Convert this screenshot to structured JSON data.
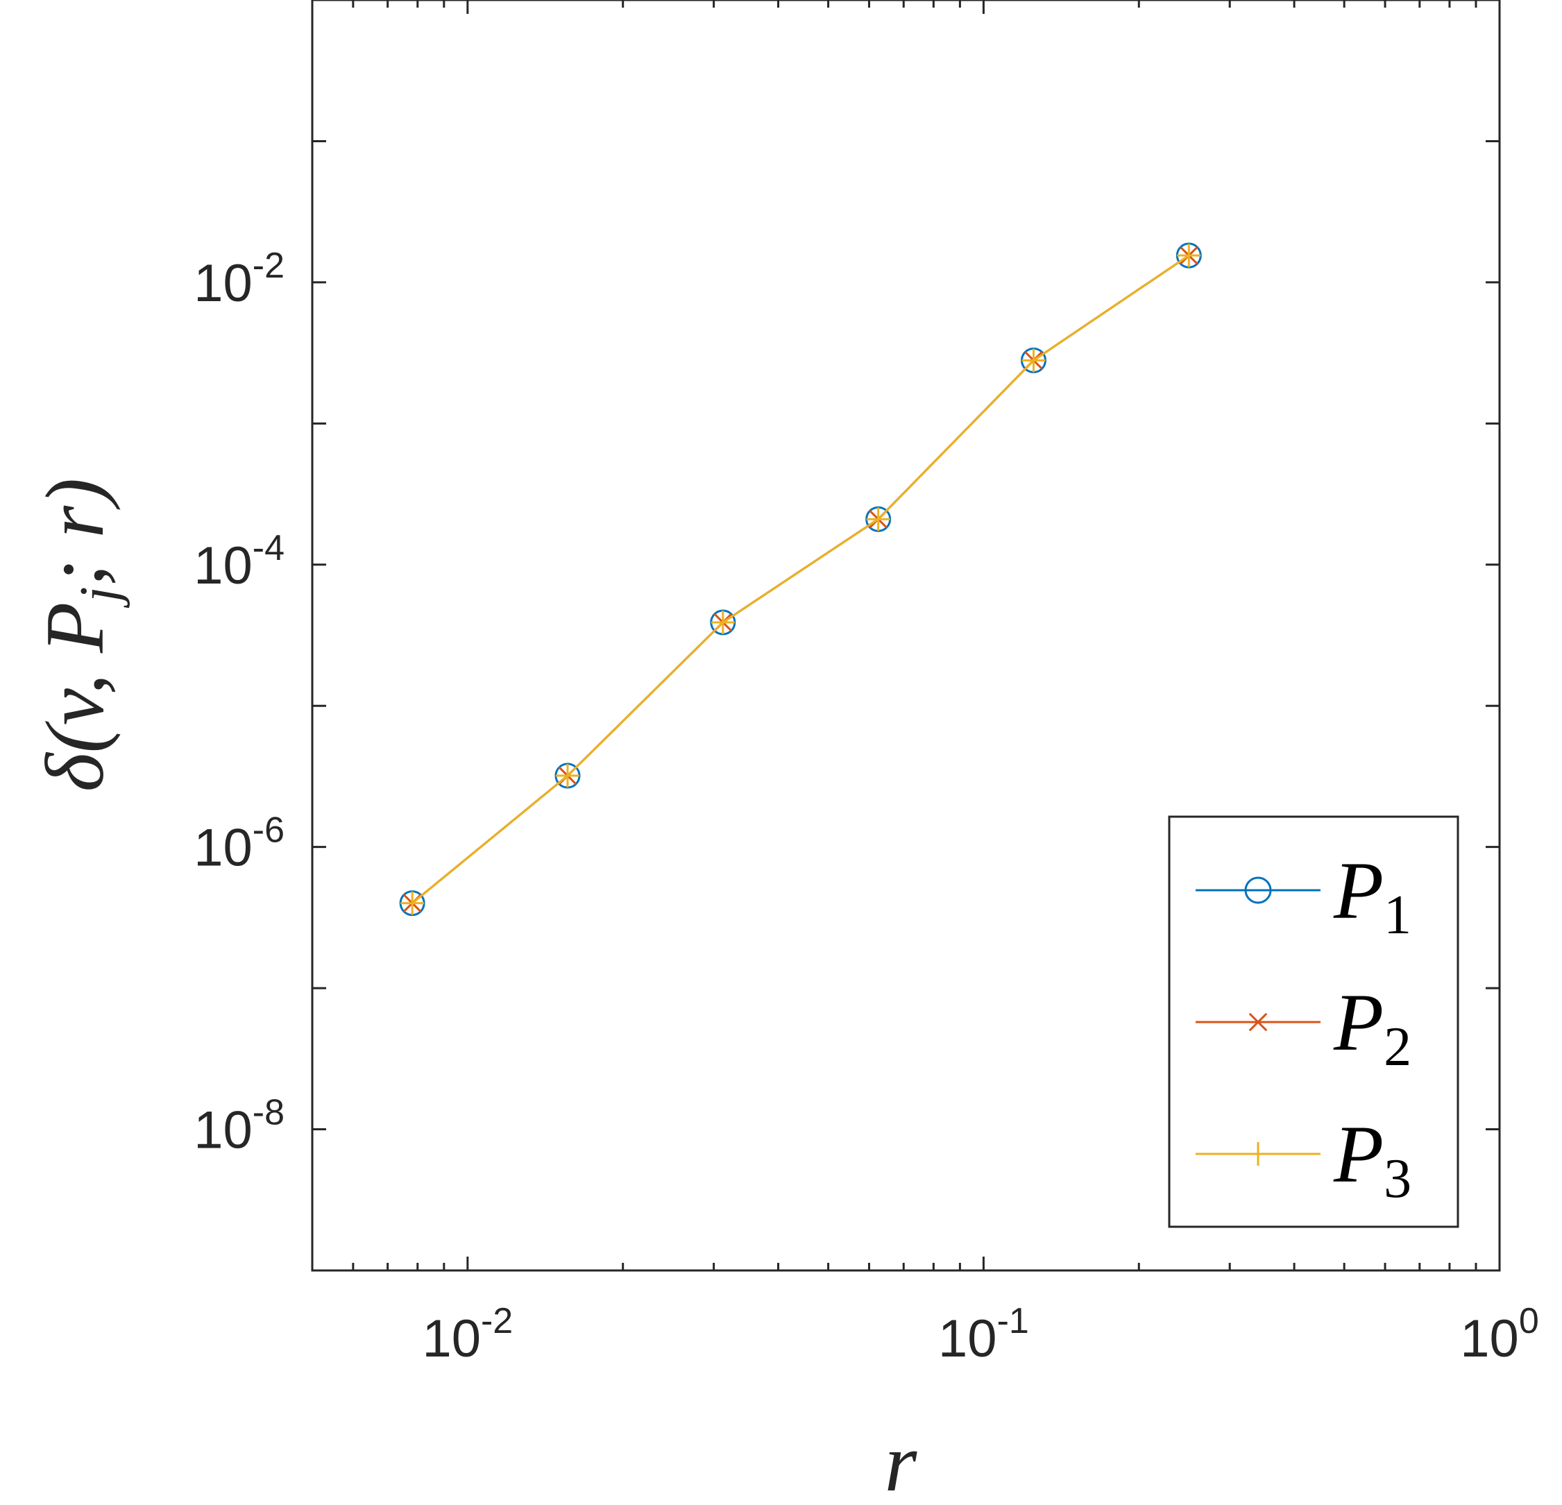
{
  "chart_data": {
    "type": "line",
    "xscale": "log",
    "yscale": "log",
    "xlim": [
      0.005,
      1
    ],
    "ylim": [
      1e-09,
      1
    ],
    "xticks": [
      {
        "value": 0.01,
        "base": "10",
        "exp": "-2"
      },
      {
        "value": 0.1,
        "base": "10",
        "exp": "-1"
      },
      {
        "value": 1,
        "base": "10",
        "exp": "0"
      }
    ],
    "yticks": [
      {
        "value": 1e-08,
        "base": "10",
        "exp": "-8"
      },
      {
        "value": 1e-06,
        "base": "10",
        "exp": "-6"
      },
      {
        "value": 0.0001,
        "base": "10",
        "exp": "-4"
      },
      {
        "value": 0.01,
        "base": "10",
        "exp": "-2"
      }
    ],
    "xlabel": "r",
    "ylabel": "δ(v, P_j; r)",
    "ylabel_parts": {
      "head": "δ(v, P",
      "sub": "j",
      "tail": "; r)"
    },
    "x": [
      0.0078125,
      0.015625,
      0.03125,
      0.0625,
      0.125,
      0.25
    ],
    "series": [
      {
        "name": "P1",
        "label_base": "P",
        "label_sub": "1",
        "color": "#0072BD",
        "marker": "circle",
        "values": [
          4e-07,
          3.2e-06,
          3.9e-05,
          0.00021,
          0.0028,
          0.0155
        ]
      },
      {
        "name": "P2",
        "label_base": "P",
        "label_sub": "2",
        "color": "#D95319",
        "marker": "x",
        "values": [
          4e-07,
          3.2e-06,
          3.9e-05,
          0.00021,
          0.0028,
          0.0155
        ]
      },
      {
        "name": "P3",
        "label_base": "P",
        "label_sub": "3",
        "color": "#EDB120",
        "marker": "plus",
        "values": [
          4e-07,
          3.2e-06,
          3.9e-05,
          0.00021,
          0.0028,
          0.0155
        ]
      }
    ],
    "legend_position": "bottom-right",
    "grid": false
  }
}
